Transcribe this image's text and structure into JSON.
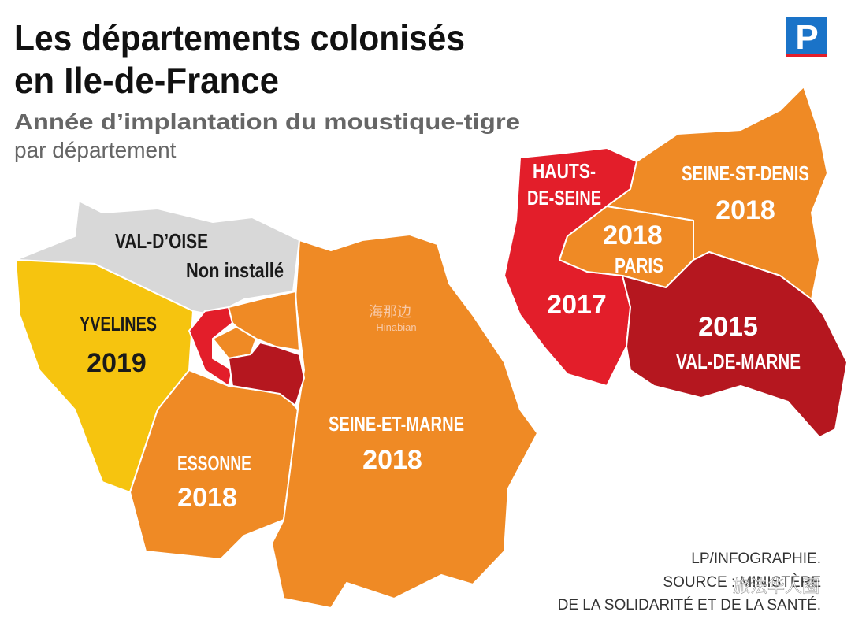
{
  "header": {
    "title_lines": [
      "Les départements colonisés",
      "en Ile-de-France"
    ],
    "subtitle": "Année d’implantation du moustique-tigre",
    "subtitle_2": "par département"
  },
  "logo": "P",
  "map": {
    "departments": [
      {
        "name": "VAL-D’OISE",
        "status": "Non installé"
      },
      {
        "name": "YVELINES",
        "year": 2019
      },
      {
        "name": "ESSONNE",
        "year": 2018
      },
      {
        "name": "SEINE-ET-MARNE",
        "year": 2018
      }
    ]
  },
  "inset": {
    "departments": [
      {
        "name_lines": [
          "HAUTS-",
          "DE-SEINE"
        ],
        "year": 2017
      },
      {
        "name": "SEINE-ST-DENIS",
        "year": 2018
      },
      {
        "name": "PARIS",
        "year": 2018
      },
      {
        "name": "VAL-DE-MARNE",
        "year": 2015
      }
    ]
  },
  "credits": [
    "LP/INFOGRAPHIE.",
    "SOURCE : MINISTÈRE",
    "DE LA SOLIDARITÉ ET DE LA SANTÉ."
  ],
  "watermarks": [
    "海那边",
    "Hinabian",
    "旅法华人圈"
  ]
}
